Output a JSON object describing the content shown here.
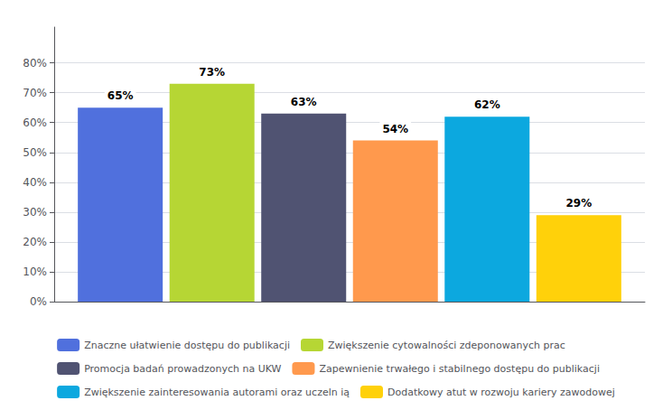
{
  "chart_data": {
    "type": "bar",
    "categories": [
      null
    ],
    "series": [
      {
        "name": "Znaczne ułatwienie dostępu do publikacji",
        "values": [
          65
        ],
        "value_labels": [
          "65%"
        ]
      },
      {
        "name": "Zwiększenie cytowalności zdeponowanych prac",
        "values": [
          73
        ],
        "value_labels": [
          "73%"
        ]
      },
      {
        "name": "Promocja badań prowadzonych na UKW",
        "values": [
          63
        ],
        "value_labels": [
          "63%"
        ]
      },
      {
        "name": "Zapewnienie trwałego i stabilnego dostępu do publikacji",
        "values": [
          54
        ],
        "value_labels": [
          "54%"
        ]
      },
      {
        "name": "Zwiększenie zainteresowania autorami oraz uczeln ią",
        "values": [
          62
        ],
        "value_labels": [
          "62%"
        ]
      },
      {
        "name": "Dodatkowy atut w rozwoju kariery zawodowej",
        "values": [
          29
        ],
        "value_labels": [
          "29%"
        ]
      }
    ],
    "ylim": [
      0,
      92
    ],
    "yticks": [
      {
        "value": 0,
        "label": "0%"
      },
      {
        "value": 10,
        "label": "10%"
      },
      {
        "value": 20,
        "label": "20%"
      },
      {
        "value": 30,
        "label": "30%"
      },
      {
        "value": 40,
        "label": "40%"
      },
      {
        "value": 50,
        "label": "50%"
      },
      {
        "value": 60,
        "label": "60%"
      },
      {
        "value": 70,
        "label": "70%"
      },
      {
        "value": 80,
        "label": "80%"
      }
    ],
    "grid": true,
    "legend": "bottom",
    "data_labels": true,
    "tick_labels": "y"
  }
}
